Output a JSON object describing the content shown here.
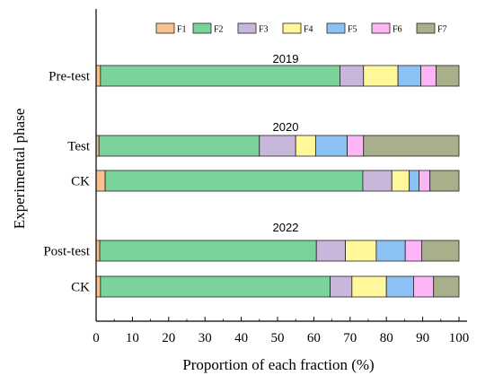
{
  "chart_data": {
    "type": "bar",
    "orientation": "horizontal",
    "stacked": true,
    "xlabel": "Proportion of each fraction (%)",
    "ylabel": "Experimental phase",
    "xlim": [
      0,
      100
    ],
    "xticks": [
      "0",
      "10",
      "20",
      "30",
      "40",
      "50",
      "60",
      "70",
      "80",
      "90",
      "100"
    ],
    "grid": false,
    "legend_position": "top",
    "series": [
      {
        "name": "F1",
        "color": "#F9C18F"
      },
      {
        "name": "F2",
        "color": "#79D39A"
      },
      {
        "name": "F3",
        "color": "#C9B6DB"
      },
      {
        "name": "F4",
        "color": "#FFF79A"
      },
      {
        "name": "F5",
        "color": "#8CC1F5"
      },
      {
        "name": "F6",
        "color": "#FCB6F6"
      },
      {
        "name": "F7",
        "color": "#A8AF8A"
      }
    ],
    "groups": [
      {
        "year": "2019",
        "bars": [
          {
            "category": "Pre-test",
            "values": [
              1.2,
              66.0,
              6.5,
              9.5,
              6.3,
              4.2,
              6.3
            ]
          }
        ]
      },
      {
        "year": "2020",
        "bars": [
          {
            "category": "Test",
            "values": [
              0.8,
              44.2,
              10.0,
              5.5,
              8.7,
              4.5,
              26.3
            ]
          },
          {
            "category": "CK",
            "values": [
              2.5,
              71.0,
              8.0,
              4.8,
              2.7,
              3.0,
              8.0
            ]
          }
        ]
      },
      {
        "year": "2022",
        "bars": [
          {
            "category": "Post-test",
            "values": [
              1.0,
              59.7,
              8.0,
              8.5,
              8.0,
              4.5,
              10.3
            ]
          },
          {
            "category": "CK",
            "values": [
              1.2,
              63.3,
              6.0,
              9.5,
              7.5,
              5.5,
              7.0
            ]
          }
        ]
      }
    ]
  }
}
